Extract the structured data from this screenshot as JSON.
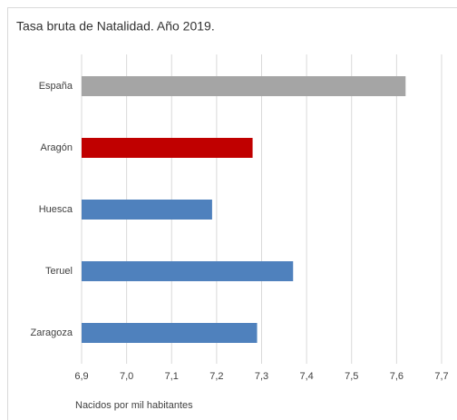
{
  "chart_data": {
    "type": "bar",
    "orientation": "horizontal",
    "title": "Tasa bruta de Natalidad. Año 2019.",
    "x_label": "Nacidos por mil habitantes",
    "categories": [
      "España",
      "Aragón",
      "Huesca",
      "Teruel",
      "Zaragoza"
    ],
    "values": [
      7.62,
      7.28,
      7.19,
      7.37,
      7.29
    ],
    "colors": [
      "#a5a5a5",
      "#c00000",
      "#4f81bd",
      "#4f81bd",
      "#4f81bd"
    ],
    "xlim": [
      6.9,
      7.7
    ],
    "xticks": [
      {
        "value": 6.9,
        "label": "6,9"
      },
      {
        "value": 7.0,
        "label": "7,0"
      },
      {
        "value": 7.1,
        "label": "7,1"
      },
      {
        "value": 7.2,
        "label": "7,2"
      },
      {
        "value": 7.3,
        "label": "7,3"
      },
      {
        "value": 7.4,
        "label": "7,4"
      },
      {
        "value": 7.5,
        "label": "7,5"
      },
      {
        "value": 7.6,
        "label": "7,6"
      },
      {
        "value": 7.7,
        "label": "7,7"
      }
    ],
    "grid": true
  }
}
